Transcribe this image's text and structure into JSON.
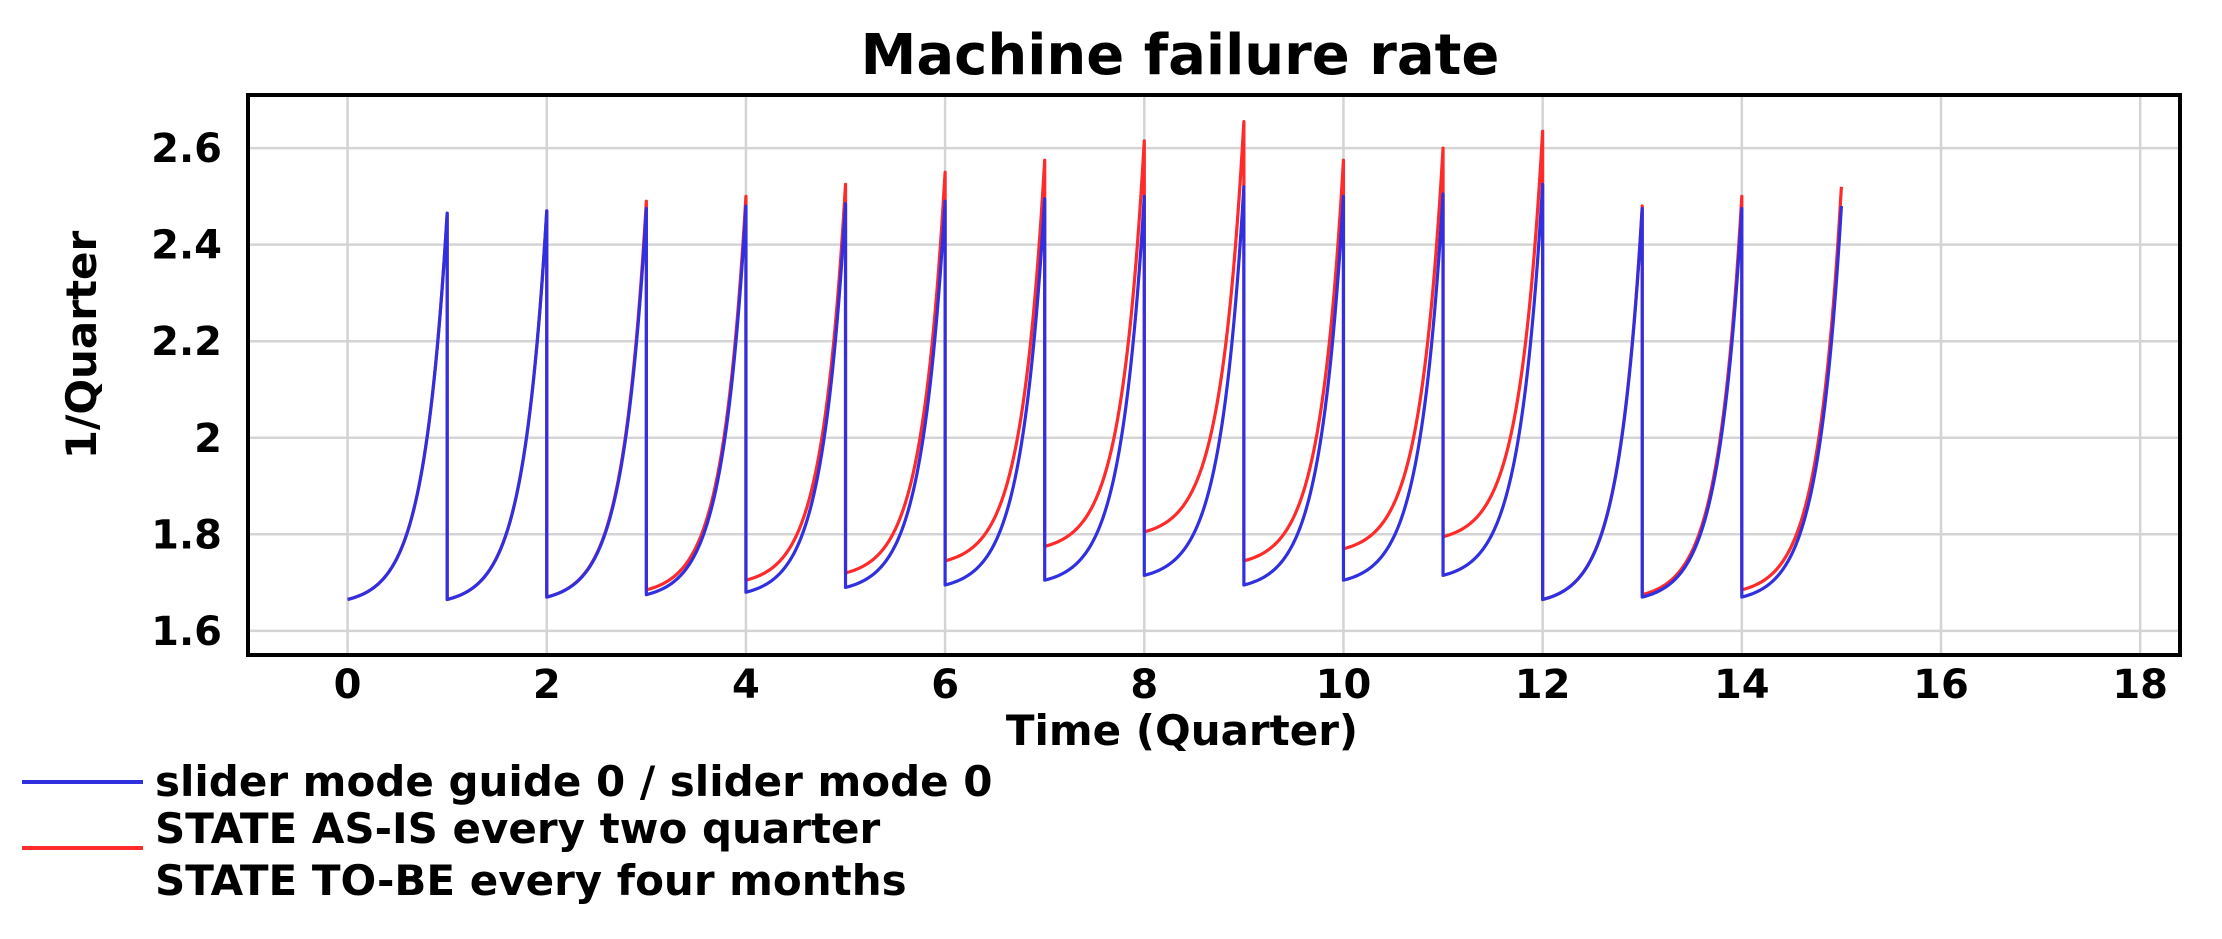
{
  "chart_data": {
    "type": "line",
    "title": "Machine failure rate",
    "xlabel": "Time (Quarter)",
    "ylabel": "1/Quarter",
    "xlim": [
      -1,
      18.4
    ],
    "ylim": [
      1.55,
      2.71
    ],
    "x_ticks": [
      0,
      2,
      4,
      6,
      8,
      10,
      12,
      14,
      16,
      18
    ],
    "y_ticks": [
      1.6,
      1.8,
      2,
      2.2,
      2.4,
      2.6
    ],
    "y_tick_labels": [
      "1.6",
      "1.8",
      "2",
      "2.2",
      "2.4",
      "2.6"
    ],
    "grid": true,
    "legend_position": "bottom-left",
    "legend": [
      {
        "label": "slider mode guide 0 / slider mode 0",
        "color": "#3030e0"
      },
      {
        "label": "STATE AS-IS every two quarter",
        "color": "#ff2a2a"
      },
      {
        "label": "STATE TO-BE every four months",
        "color": null
      }
    ],
    "series": [
      {
        "name": "slider mode guide 0 / slider mode 0",
        "color": "#3030e0",
        "cycles": [
          {
            "start": 0,
            "end": 1,
            "base": 1.665,
            "peak": 2.465
          },
          {
            "start": 1,
            "end": 2,
            "base": 1.665,
            "peak": 2.47
          },
          {
            "start": 2,
            "end": 3,
            "base": 1.67,
            "peak": 2.475
          },
          {
            "start": 3,
            "end": 4,
            "base": 1.675,
            "peak": 2.48
          },
          {
            "start": 4,
            "end": 5,
            "base": 1.68,
            "peak": 2.485
          },
          {
            "start": 5,
            "end": 6,
            "base": 1.69,
            "peak": 2.49
          },
          {
            "start": 6,
            "end": 7,
            "base": 1.695,
            "peak": 2.495
          },
          {
            "start": 7,
            "end": 8,
            "base": 1.705,
            "peak": 2.5
          },
          {
            "start": 8,
            "end": 9,
            "base": 1.715,
            "peak": 2.52
          },
          {
            "start": 9,
            "end": 10,
            "base": 1.695,
            "peak": 2.5
          },
          {
            "start": 10,
            "end": 11,
            "base": 1.705,
            "peak": 2.505
          },
          {
            "start": 11,
            "end": 12,
            "base": 1.715,
            "peak": 2.525
          },
          {
            "start": 12,
            "end": 13,
            "base": 1.665,
            "peak": 2.475
          },
          {
            "start": 13,
            "end": 14,
            "base": 1.67,
            "peak": 2.475
          },
          {
            "start": 14,
            "end": 15,
            "base": 1.67,
            "peak": 2.48
          }
        ]
      },
      {
        "name": "STATE AS-IS every two quarter",
        "color": "#ff2a2a",
        "cycles": [
          {
            "start": 0,
            "end": 1,
            "base": 1.665,
            "peak": 2.465
          },
          {
            "start": 1,
            "end": 2,
            "base": 1.665,
            "peak": 2.47
          },
          {
            "start": 2,
            "end": 3,
            "base": 1.67,
            "peak": 2.49
          },
          {
            "start": 3,
            "end": 4,
            "base": 1.685,
            "peak": 2.5
          },
          {
            "start": 4,
            "end": 5,
            "base": 1.705,
            "peak": 2.525
          },
          {
            "start": 5,
            "end": 6,
            "base": 1.72,
            "peak": 2.55
          },
          {
            "start": 6,
            "end": 7,
            "base": 1.745,
            "peak": 2.575
          },
          {
            "start": 7,
            "end": 8,
            "base": 1.775,
            "peak": 2.615
          },
          {
            "start": 8,
            "end": 9,
            "base": 1.805,
            "peak": 2.655
          },
          {
            "start": 9,
            "end": 10,
            "base": 1.745,
            "peak": 2.575
          },
          {
            "start": 10,
            "end": 11,
            "base": 1.77,
            "peak": 2.6
          },
          {
            "start": 11,
            "end": 12,
            "base": 1.795,
            "peak": 2.635
          },
          {
            "start": 12,
            "end": 13,
            "base": 1.665,
            "peak": 2.48
          },
          {
            "start": 13,
            "end": 14,
            "base": 1.675,
            "peak": 2.5
          },
          {
            "start": 14,
            "end": 15,
            "base": 1.685,
            "peak": 2.52
          }
        ]
      }
    ]
  }
}
